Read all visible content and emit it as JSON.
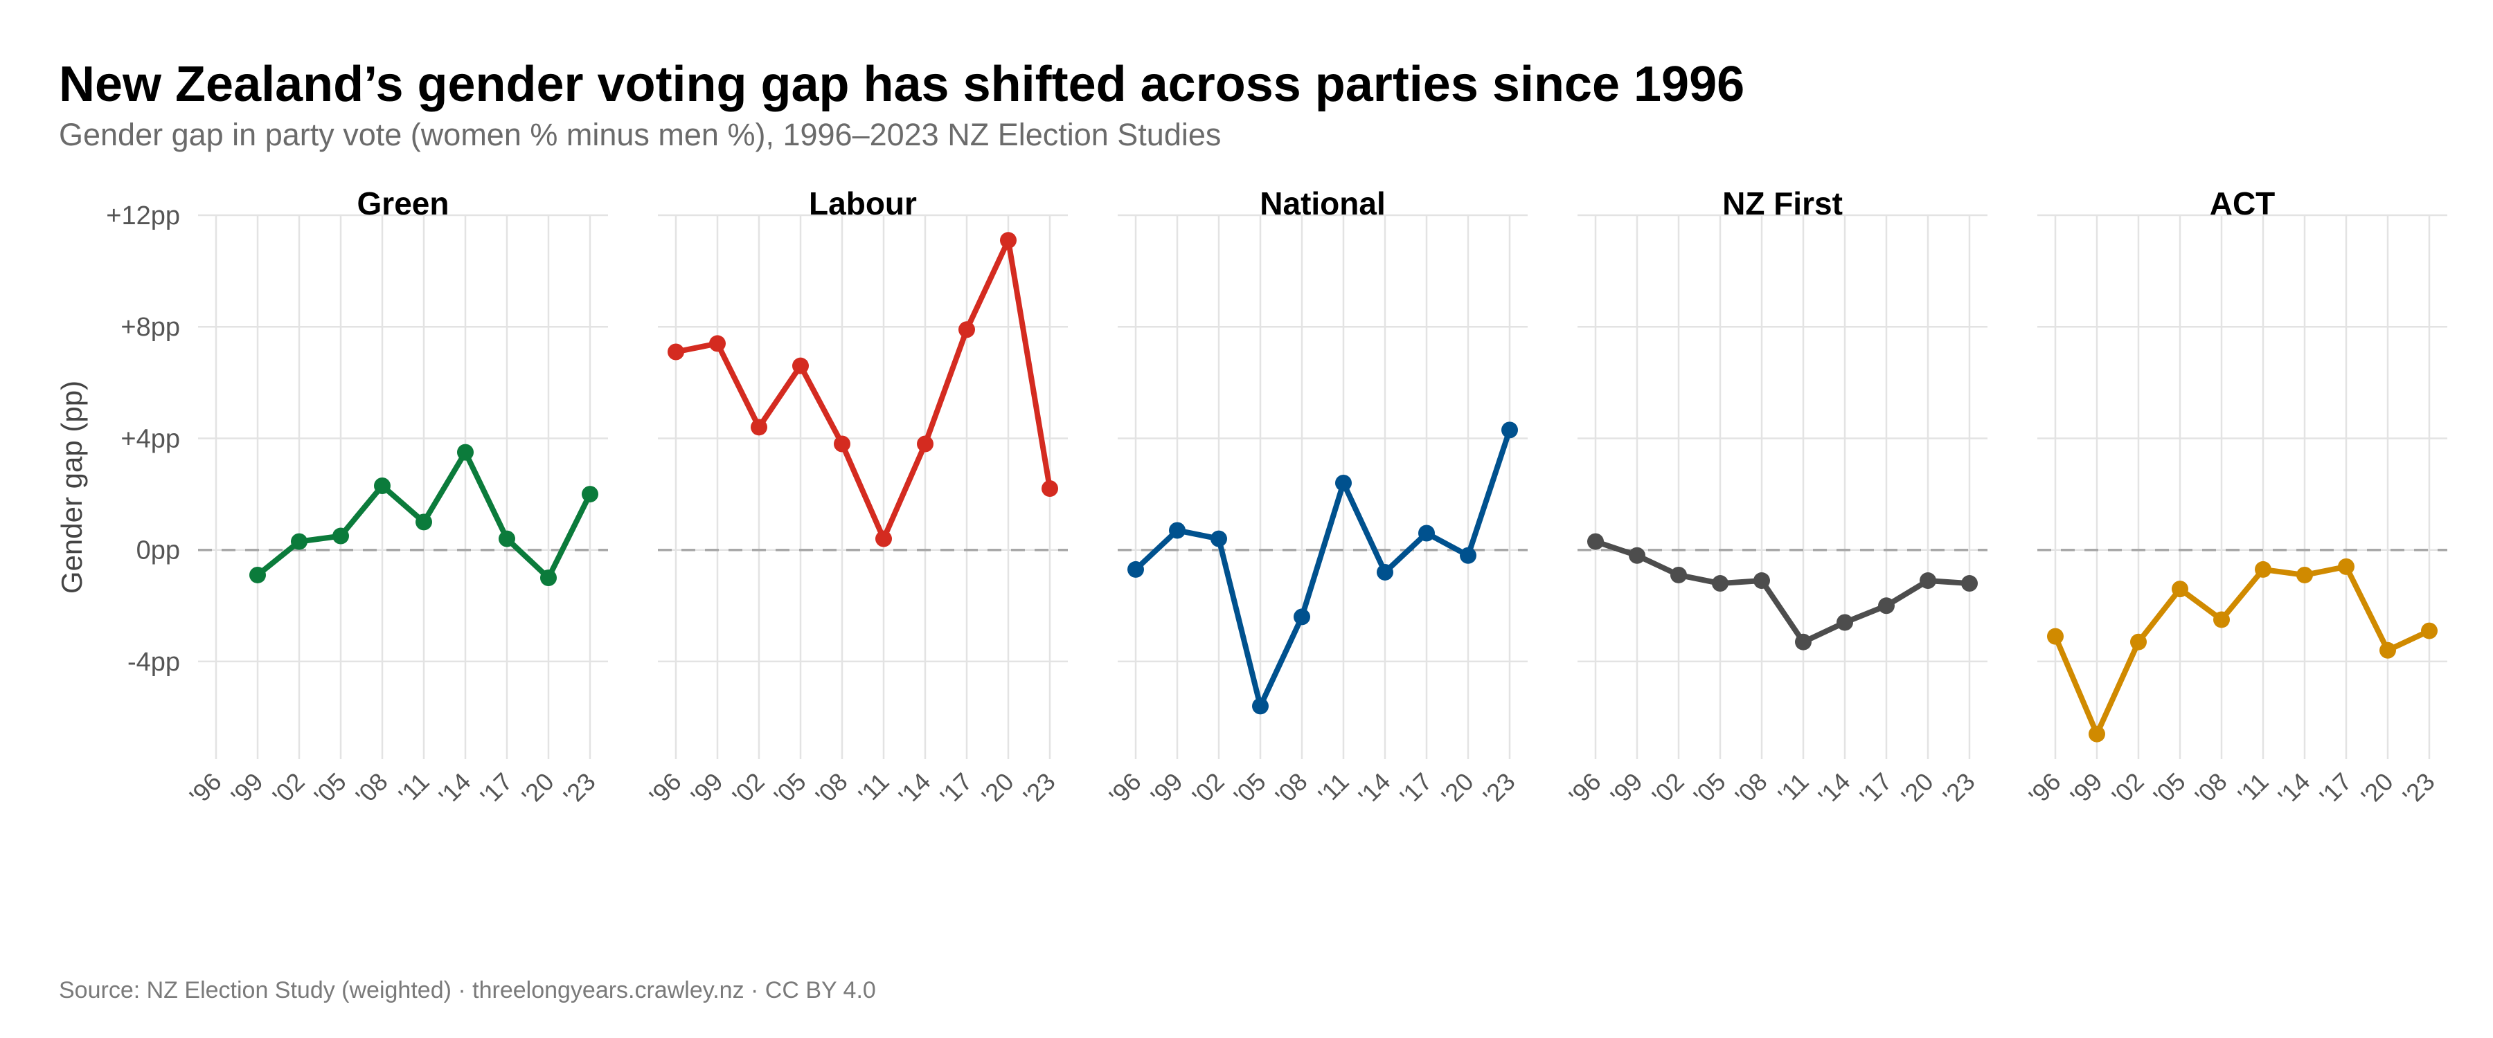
{
  "chart_data": {
    "type": "line",
    "title": "New Zealand’s gender voting gap has shifted across parties since 1996",
    "subtitle": "Gender gap in party vote (women % minus men %), 1996–2023 NZ Election Studies",
    "caption": "Source: NZ Election Study (weighted) · threelongyears.crawley.nz · CC BY 4.0",
    "ylabel": "Gender gap (pp)",
    "xlabel": "",
    "ylim": [
      -7.5,
      12
    ],
    "yticks": [
      -4,
      0,
      4,
      8,
      12
    ],
    "ytick_labels": [
      "-4pp",
      "0pp",
      "+4pp",
      "+8pp",
      "+12pp"
    ],
    "x": [
      1996,
      1999,
      2002,
      2005,
      2008,
      2011,
      2014,
      2017,
      2020,
      2023
    ],
    "xtick_labels": [
      "'96",
      "'99",
      "'02",
      "'05",
      "'08",
      "'11",
      "'14",
      "'17",
      "'20",
      "'23"
    ],
    "reference_line": 0,
    "grid": true,
    "facets": [
      {
        "name": "Green",
        "color": "#0b7b3b",
        "values": [
          null,
          -0.9,
          0.3,
          0.5,
          2.3,
          1.0,
          3.5,
          0.4,
          -1.0,
          2.0
        ]
      },
      {
        "name": "Labour",
        "color": "#d42b20",
        "values": [
          7.1,
          7.4,
          4.4,
          6.6,
          3.8,
          0.4,
          3.8,
          7.9,
          11.1,
          2.2
        ]
      },
      {
        "name": "National",
        "color": "#00518e",
        "values": [
          -0.7,
          0.7,
          0.4,
          -5.6,
          -2.4,
          2.4,
          -0.8,
          0.6,
          -0.2,
          4.3
        ]
      },
      {
        "name": "NZ First",
        "color": "#4d4d4d",
        "values": [
          0.3,
          -0.2,
          -0.9,
          -1.2,
          -1.1,
          -3.3,
          -2.6,
          -2.0,
          -1.1,
          -1.2
        ]
      },
      {
        "name": "ACT",
        "color": "#d08a00",
        "values": [
          -3.1,
          -6.6,
          -3.3,
          -1.4,
          -2.5,
          -0.7,
          -0.9,
          -0.6,
          -3.6,
          -2.9
        ]
      }
    ]
  }
}
